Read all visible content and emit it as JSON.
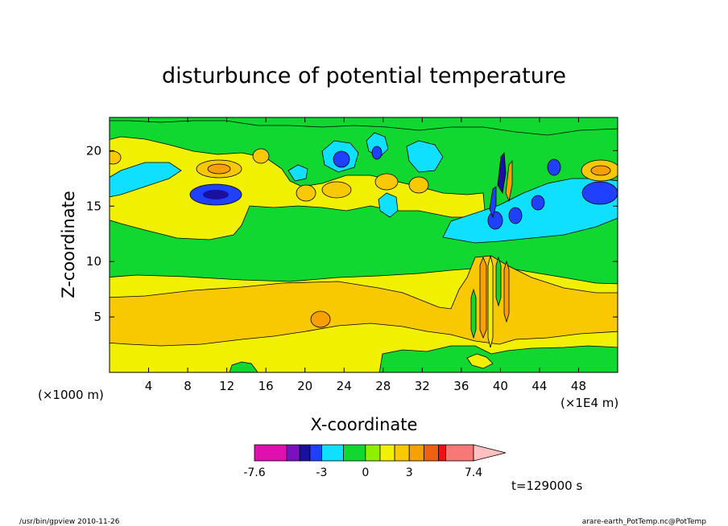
{
  "chart_data": {
    "type": "heatmap",
    "title": "disturbunce of potential temperature",
    "xlabel": "X-coordinate",
    "ylabel": "Z-coordinate",
    "x_unit_left": "(×1000 m)",
    "x_unit_right": "(×1E4 m)",
    "xlim": [
      0,
      52
    ],
    "ylim": [
      0,
      23
    ],
    "x_ticks": [
      "4",
      "8",
      "12",
      "16",
      "20",
      "24",
      "28",
      "32",
      "36",
      "40",
      "44",
      "48"
    ],
    "y_ticks": [
      "5",
      "10",
      "15",
      "20"
    ],
    "time_label": "t=129000 s",
    "colorbar": {
      "tick_labels": [
        "-7.6",
        "-3",
        "0",
        "3",
        "7.4"
      ],
      "bins": [
        {
          "color": "#e010b0",
          "range": [
            -7.6,
            -5.4
          ]
        },
        {
          "color": "#7a10c0",
          "range": [
            -5.4,
            -4.5
          ]
        },
        {
          "color": "#1a10a0",
          "range": [
            -4.5,
            -3.8
          ]
        },
        {
          "color": "#2040ff",
          "range": [
            -3.8,
            -3.0
          ]
        },
        {
          "color": "#10e0ff",
          "range": [
            -3.0,
            -1.5
          ]
        },
        {
          "color": "#10d830",
          "range": [
            -1.5,
            0.0
          ]
        },
        {
          "color": "#8cf000",
          "range": [
            0.0,
            1.0
          ]
        },
        {
          "color": "#f0f000",
          "range": [
            1.0,
            2.0
          ]
        },
        {
          "color": "#f8c800",
          "range": [
            2.0,
            3.0
          ]
        },
        {
          "color": "#f8a000",
          "range": [
            3.0,
            4.0
          ]
        },
        {
          "color": "#f06010",
          "range": [
            4.0,
            5.0
          ]
        },
        {
          "color": "#f01010",
          "range": [
            5.0,
            5.5
          ]
        },
        {
          "color": "#f87878",
          "range": [
            5.5,
            7.4
          ]
        }
      ],
      "overflow_color": "#ffc0c0"
    },
    "regions": [
      {
        "desc": "lower warm band",
        "x": [
          0,
          52
        ],
        "z": [
          2,
          8
        ],
        "value": 2.5
      },
      {
        "desc": "warm eddy",
        "x": [
          20,
          22
        ],
        "z": [
          4,
          5.5
        ],
        "value": 4.5
      },
      {
        "desc": "upper cold eddy",
        "x": [
          9,
          13
        ],
        "z": [
          15.5,
          17
        ],
        "value": -3.5
      },
      {
        "desc": "upper warm eddy",
        "x": [
          9,
          12.5
        ],
        "z": [
          17.5,
          19
        ],
        "value": 4.5
      },
      {
        "desc": "upper right warm eddy",
        "x": [
          46,
          50
        ],
        "z": [
          17,
          19
        ],
        "value": 4.5
      }
    ]
  },
  "footer": {
    "left": "/usr/bin/gpview   2010-11-26",
    "right": "arare-earth_PotTemp.nc@PotTemp"
  }
}
